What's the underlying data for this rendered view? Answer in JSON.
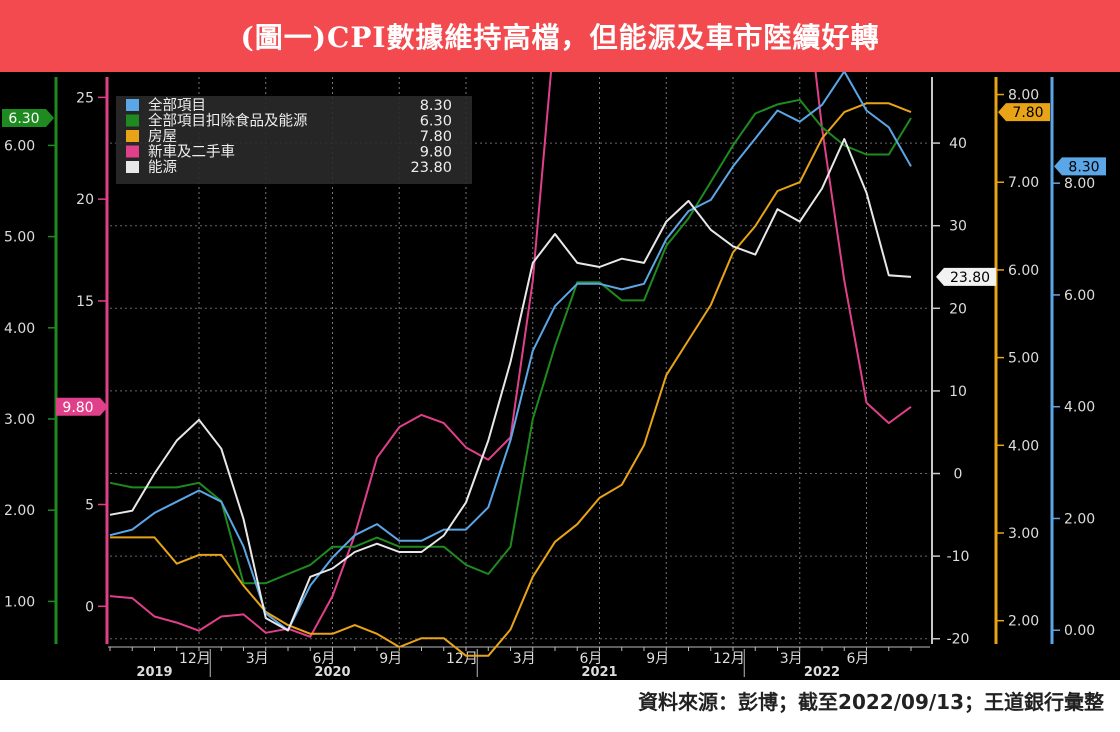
{
  "header": {
    "title": "(圖一)CPI數據維持高檔，但能源及車市陸續好轉"
  },
  "footer": {
    "source": "資料來源：彭博；截至2022/09/13；王道銀行彙整"
  },
  "colors": {
    "all": "#5ba6e6",
    "core": "#1f8a1f",
    "housing": "#e8a317",
    "cars": "#e0408a",
    "energy": "#e8e8e8",
    "axis_gray": "#c8c8c8"
  },
  "chart_data": {
    "type": "line",
    "title": "(圖一)CPI數據維持高檔，但能源及車市陸續好轉",
    "x": [
      "2019-08",
      "2019-09",
      "2019-10",
      "2019-11",
      "2019-12",
      "2020-01",
      "2020-02",
      "2020-03",
      "2020-04",
      "2020-05",
      "2020-06",
      "2020-07",
      "2020-08",
      "2020-09",
      "2020-10",
      "2020-11",
      "2020-12",
      "2021-01",
      "2021-02",
      "2021-03",
      "2021-04",
      "2021-05",
      "2021-06",
      "2021-07",
      "2021-08",
      "2021-09",
      "2021-10",
      "2021-11",
      "2021-12",
      "2022-01",
      "2022-02",
      "2022-03",
      "2022-04",
      "2022-05",
      "2022-06",
      "2022-07",
      "2022-08"
    ],
    "x_tick_labels": [
      {
        "x": "2019-12",
        "label": "12月"
      },
      {
        "x": "2020-03",
        "label": "3月"
      },
      {
        "x": "2020-06",
        "label": "6月"
      },
      {
        "x": "2020-09",
        "label": "9月"
      },
      {
        "x": "2020-12",
        "label": "12月"
      },
      {
        "x": "2021-03",
        "label": "3月"
      },
      {
        "x": "2021-06",
        "label": "6月"
      },
      {
        "x": "2021-09",
        "label": "9月"
      },
      {
        "x": "2021-12",
        "label": "12月"
      },
      {
        "x": "2022-03",
        "label": "3月"
      },
      {
        "x": "2022-06",
        "label": "6月"
      }
    ],
    "year_labels": [
      {
        "x": "2019-10",
        "label": "2019"
      },
      {
        "x": "2020-06",
        "label": "2020"
      },
      {
        "x": "2021-06",
        "label": "2021"
      },
      {
        "x": "2022-04",
        "label": "2022"
      }
    ],
    "axes": {
      "core": {
        "ticks": [
          "1.00",
          "2.00",
          "3.00",
          "4.00",
          "5.00",
          "6.00"
        ],
        "range": [
          0.5,
          6.75
        ]
      },
      "cars": {
        "ticks": [
          "0",
          "5",
          "15",
          "20",
          "25"
        ],
        "range": [
          -2,
          26
        ]
      },
      "energy": {
        "ticks": [
          "-20",
          "-10",
          "0",
          "10",
          "20",
          "30",
          "40"
        ],
        "range": [
          -21,
          48
        ]
      },
      "housing": {
        "ticks": [
          "2.00",
          "3.00",
          "4.00",
          "5.00",
          "6.00",
          "7.00",
          "8.00"
        ],
        "range": [
          1.7,
          8.2
        ]
      },
      "all": {
        "ticks": [
          "0.00",
          "2.00",
          "4.00",
          "6.00",
          "8.00"
        ],
        "range": [
          -0.3,
          9.9
        ]
      }
    },
    "series": [
      {
        "name": "全部項目",
        "key": "all",
        "last": "8.30",
        "values": [
          1.7,
          1.8,
          2.1,
          2.3,
          2.5,
          2.3,
          1.5,
          0.3,
          0.0,
          0.8,
          1.3,
          1.7,
          1.9,
          1.6,
          1.6,
          1.8,
          1.8,
          2.2,
          3.4,
          5.0,
          5.8,
          6.2,
          6.2,
          6.1,
          6.2,
          7.0,
          7.5,
          7.7,
          8.3,
          8.8,
          9.3,
          9.1,
          9.4,
          10.0,
          9.3,
          9.0,
          8.3
        ]
      },
      {
        "name": "全部項目扣除食品及能源",
        "key": "core",
        "last": "6.30",
        "values": [
          2.3,
          2.25,
          2.25,
          2.25,
          2.3,
          2.1,
          1.2,
          1.2,
          1.3,
          1.4,
          1.6,
          1.6,
          1.7,
          1.6,
          1.6,
          1.6,
          1.4,
          1.3,
          1.6,
          3.0,
          3.8,
          4.5,
          4.5,
          4.3,
          4.3,
          4.9,
          5.2,
          5.6,
          6.0,
          6.35,
          6.45,
          6.5,
          6.2,
          6.0,
          5.9,
          5.9,
          6.3
        ]
      },
      {
        "name": "房屋",
        "key": "housing",
        "last": "7.80",
        "values": [
          2.95,
          2.95,
          2.95,
          2.65,
          2.75,
          2.75,
          2.4,
          2.1,
          1.95,
          1.85,
          1.85,
          1.95,
          1.85,
          1.7,
          1.8,
          1.8,
          1.6,
          1.6,
          1.9,
          2.5,
          2.9,
          3.1,
          3.4,
          3.55,
          4.0,
          4.8,
          5.2,
          5.6,
          6.2,
          6.5,
          6.9,
          7.0,
          7.5,
          7.8,
          7.9,
          7.9,
          7.8
        ]
      },
      {
        "name": "新車及二手車",
        "key": "cars",
        "last": "9.80",
        "values": [
          0.5,
          0.4,
          -0.5,
          -0.8,
          -1.2,
          -0.5,
          -0.4,
          -1.3,
          -1.1,
          -1.5,
          0.5,
          3.5,
          7.3,
          8.8,
          9.4,
          9.0,
          7.8,
          7.2,
          8.3,
          16.0,
          28.5,
          43.5,
          41.5,
          35.0,
          29.5,
          33.0,
          37.8,
          42.0,
          46.8,
          47.5,
          43.0,
          33.0,
          23.5,
          16.0,
          10.0,
          9.0,
          9.8
        ]
      },
      {
        "name": "能源",
        "key": "energy",
        "last": "23.80",
        "values": [
          -5.0,
          -4.5,
          0.0,
          4.0,
          6.5,
          3.0,
          -5.5,
          -17.5,
          -19.0,
          -12.5,
          -11.5,
          -9.5,
          -8.5,
          -9.5,
          -9.5,
          -7.5,
          -3.5,
          4.0,
          13.5,
          25.5,
          29.0,
          25.5,
          25.0,
          26.0,
          25.5,
          30.5,
          33.0,
          29.5,
          27.5,
          26.5,
          32.0,
          30.5,
          34.5,
          40.5,
          34.0,
          24.0,
          23.8
        ]
      }
    ],
    "legend": {
      "position": "top-left"
    }
  }
}
